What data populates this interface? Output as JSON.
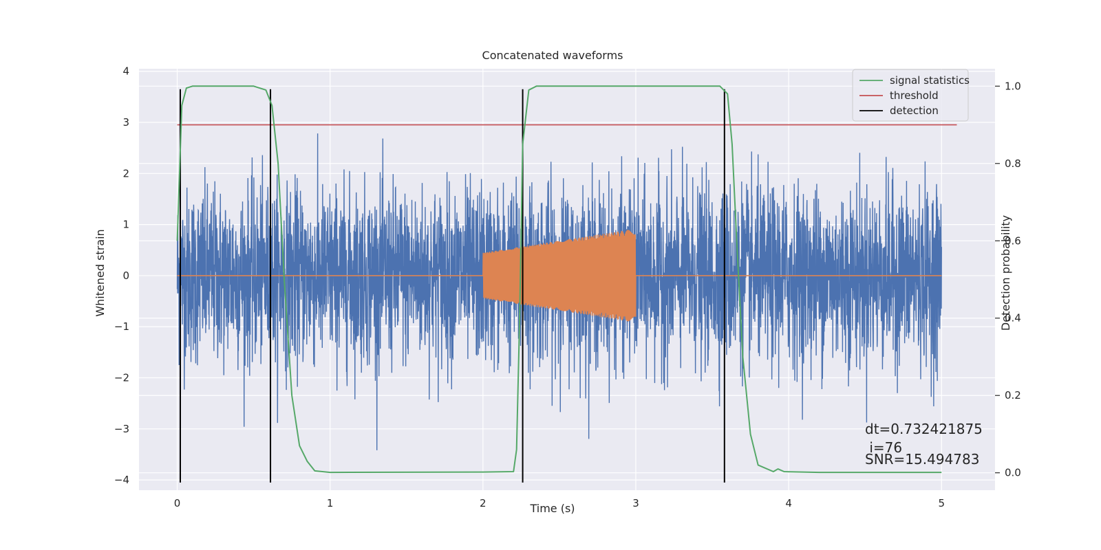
{
  "chart_data": {
    "type": "line",
    "title": "Concatenated waveforms",
    "xlabel": "Time (s)",
    "ylabel": "Whitened strain",
    "y2label": "Detection probability",
    "xlim": [
      -0.25,
      5.35
    ],
    "ylim": [
      -4.2,
      4.05
    ],
    "y2lim": [
      -0.045,
      1.045
    ],
    "xticks": [
      0,
      1,
      2,
      3,
      4,
      5
    ],
    "yticks": [
      -4,
      -3,
      -2,
      -1,
      0,
      1,
      2,
      3,
      4
    ],
    "y2ticks": [
      0.0,
      0.2,
      0.4,
      0.6,
      0.8,
      1.0
    ],
    "grid": true,
    "legend_position": "top-right",
    "colors": {
      "background": "#eaeaf2",
      "strain": "#4c72b0",
      "injection": "#dd8452",
      "signal": "#55a868",
      "threshold": "#c44e52",
      "detection": "#000000",
      "grid": "#ffffff"
    },
    "series": [
      {
        "name": "",
        "role": "whitened strain",
        "axis": "left",
        "description_points": "noise, approx uniform amplitude ±2.5 with spikes to ±3.6",
        "x_range": [
          0,
          5
        ],
        "peak_abs": 3.6
      },
      {
        "name": "",
        "role": "injected waveform",
        "axis": "left",
        "x_range": [
          2.0,
          3.0
        ],
        "amplitude_start": 0.45,
        "amplitude_end": 0.92
      },
      {
        "name": "signal statistics",
        "axis": "right",
        "x": [
          0,
          0.03,
          0.06,
          0.1,
          0.5,
          0.58,
          0.62,
          0.66,
          0.7,
          0.75,
          0.8,
          0.85,
          0.9,
          1.0,
          2.0,
          2.2,
          2.22,
          2.24,
          2.26,
          2.3,
          2.35,
          2.4,
          3.55,
          3.6,
          3.63,
          3.66,
          3.7,
          3.75,
          3.8,
          3.9,
          3.93,
          3.97,
          4.2,
          5.0
        ],
        "values": [
          0.6,
          0.95,
          0.995,
          1.0,
          1.0,
          0.99,
          0.95,
          0.8,
          0.5,
          0.2,
          0.07,
          0.03,
          0.005,
          0.001,
          0.002,
          0.003,
          0.06,
          0.4,
          0.85,
          0.99,
          1.0,
          1.0,
          1.0,
          0.98,
          0.85,
          0.6,
          0.3,
          0.1,
          0.02,
          0.003,
          0.01,
          0.003,
          0.001,
          0.001
        ]
      },
      {
        "name": "threshold",
        "axis": "right",
        "x": [
          0,
          5.1
        ],
        "values": [
          0.9,
          0.9
        ]
      },
      {
        "name": "detection",
        "axis": "left",
        "x": [
          0.02,
          0.61,
          2.26,
          3.58
        ],
        "y_range": [
          -4.05,
          3.65
        ]
      }
    ],
    "legend": [
      "signal statistics",
      "threshold",
      "detection"
    ],
    "annotations": [
      "dt=0.732421875",
      " i=76",
      "SNR=15.494783"
    ]
  }
}
